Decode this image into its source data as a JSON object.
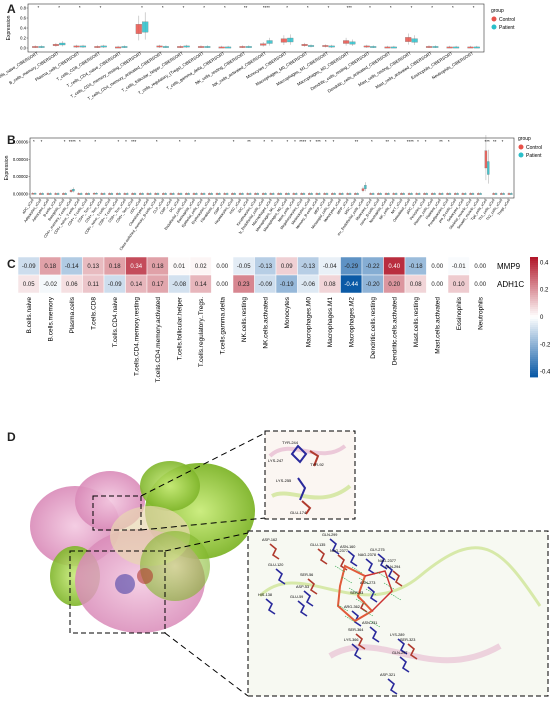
{
  "panels": {
    "a": {
      "letter": "A",
      "ylabel": "Expression",
      "legend_title": "group",
      "legend_items": [
        "Control",
        "Patient"
      ],
      "yticks": [
        "0.8",
        "0.6",
        "0.4",
        "0.2",
        "0.0"
      ],
      "categories": [
        "B_cells_naive_CIBERSORT",
        "B_cells_memory_CIBERSORT",
        "Plasma_cells_CIBERSORT",
        "T_cells_CD8_CIBERSORT",
        "T_cells_CD4_naive_CIBERSORT",
        "T_cells_CD4_memory_resting_CIBERSORT",
        "T_cells_CD4_memory_activated_CIBERSORT",
        "T_cells_follicular_helper_CIBERSORT",
        "T_cells_regulatory_(Tregs)_CIBERSORT",
        "T_cells_gamma_delta_CIBERSORT",
        "NK_cells_resting_CIBERSORT",
        "NK_cells_activated_CIBERSORT",
        "Monocytes_CIBERSORT",
        "Macrophages_M0_CIBERSORT",
        "Macrophages_M1_CIBERSORT",
        "Macrophages_M2_CIBERSORT",
        "Dendritic_cells_resting_CIBERSORT",
        "Dendritic_cells_activated_CIBERSORT",
        "Mast_cells_resting_CIBERSORT",
        "Mast_cells_activated_CIBERSORT",
        "Eosinophils_CIBERSORT",
        "Neutrophils_CIBERSORT"
      ],
      "significance": [
        "*",
        "*",
        "*",
        "*",
        "",
        "*",
        "*",
        "*",
        "*",
        "*",
        "**",
        "****",
        "*",
        "*",
        "*",
        "***",
        "*",
        "*",
        "*",
        "*",
        "*",
        "*"
      ],
      "control_median": [
        0.02,
        0.06,
        0.03,
        0.02,
        0.01,
        0.38,
        0.03,
        0.02,
        0.02,
        0.01,
        0.02,
        0.07,
        0.15,
        0.06,
        0.04,
        0.12,
        0.03,
        0.01,
        0.17,
        0.02,
        0.01,
        0.01
      ],
      "patient_median": [
        0.02,
        0.08,
        0.03,
        0.03,
        0.02,
        0.42,
        0.02,
        0.03,
        0.02,
        0.01,
        0.02,
        0.12,
        0.16,
        0.04,
        0.03,
        0.1,
        0.02,
        0.01,
        0.15,
        0.02,
        0.01,
        0.01
      ]
    },
    "b": {
      "letter": "B",
      "ylabel": "Expression",
      "legend_title": "group",
      "legend_items": [
        "Control",
        "Patient"
      ],
      "yticks": [
        "0.00006",
        "0.00004",
        "0.00002",
        "0.00000"
      ],
      "categories": [
        "aDC_xCell",
        "Adipocytes_xCell",
        "Astrocytes_xCell",
        "B-cells_xCell",
        "Basophils_xCell",
        "CD4+_memory_T-cells_xCell",
        "CD4+_naive_T-cells_xCell",
        "CD4+_T-cells_xCell",
        "CD4+_Tcm_xCell",
        "CD4+_Tem_xCell",
        "CD8+_naive_T-cells_xCell",
        "CD8+_T-cells_xCell",
        "CD8+_Tcm_xCell",
        "CD8+_Tem_xCell",
        "cDC_xCell",
        "Chondrocytes_xCell",
        "Class-switched_memory_B-cells_xCell",
        "CLP_xCell",
        "CMP_xCell",
        "DC_xCell",
        "Endothelial_cells_xCell",
        "Eosinophils_xCell",
        "Epithelial_cells_xCell",
        "Erythrocytes_xCell",
        "Fibroblasts_xCell",
        "GMP_xCell",
        "Hepatocytes_xCell",
        "HSC_xCell",
        "iDC_xCell",
        "Keratinocytes_xCell",
        "ly_Endothelial_cells_xCell",
        "Macrophages_xCell",
        "Macrophages_M1_xCell",
        "Macrophages_M2_xCell",
        "Mast_cells_xCell",
        "Megakaryocytes_xCell",
        "Melanocytes_xCell",
        "Memory_B-cells_xCell",
        "MEP_xCell",
        "Mesangial_cells_xCell",
        "Monocytes_xCell",
        "MPP_xCell",
        "MSC_xCell",
        "mv_Endothelial_cells_xCell",
        "Myocytes_xCell",
        "naive_B-cells_xCell",
        "Neutrophils_xCell",
        "NK_cells_xCell",
        "NKT_xCell",
        "Osteoblast_xCell",
        "pDC_xCell",
        "Pericytes_xCell",
        "Plasma_cells_xCell",
        "Platelets_xCell",
        "Preadipocytes_xCell",
        "pro_B-cells_xCell",
        "Sebocytes_xCell",
        "Skeletal_muscle_xCell",
        "Smooth_muscle_xCell",
        "Tgd_cells_xCell",
        "Th1_cells_xCell",
        "Th2_cells_xCell",
        "Tregs_xCell"
      ],
      "significance": [
        "*",
        "*",
        "",
        "",
        "*",
        "****",
        "*",
        "",
        "*",
        "",
        "",
        "*",
        "*",
        "***",
        "",
        "",
        "*",
        "",
        "",
        "*",
        "",
        "*",
        "",
        "",
        "",
        "",
        "*",
        "",
        "**",
        "",
        "*",
        "*",
        "",
        "*",
        "*",
        "****",
        "*",
        "***",
        "*",
        "*",
        "",
        "",
        "**",
        "",
        "*",
        "",
        "**",
        "*",
        "",
        "****",
        "*",
        "*",
        "",
        "**",
        "*",
        "",
        "",
        "",
        "",
        "***",
        "**",
        "*",
        ""
      ],
      "control_median": [
        2e-07,
        0,
        0,
        0,
        0,
        3.5e-06,
        0,
        0,
        2e-07,
        0,
        0,
        0,
        0,
        0,
        0,
        0,
        0,
        0,
        0,
        0,
        0,
        0,
        0,
        0,
        0,
        0,
        0,
        0,
        0,
        0,
        0,
        0,
        0,
        0,
        0,
        0,
        0,
        0,
        0,
        0,
        0,
        0,
        0,
        5e-06,
        0,
        0,
        0,
        0,
        0,
        0,
        0,
        0,
        0,
        0,
        0,
        0,
        0,
        0,
        0,
        4e-05,
        0,
        0,
        0
      ],
      "patient_median": [
        2e-07,
        0,
        0,
        0,
        0,
        4.5e-06,
        0,
        0,
        3e-07,
        0,
        0,
        0,
        0,
        0,
        0,
        0,
        0,
        0,
        0,
        0,
        0,
        0,
        0,
        0,
        0,
        0,
        0,
        0,
        0,
        0,
        0,
        0,
        0,
        0,
        0,
        0,
        0,
        0,
        0,
        0,
        0,
        0,
        0,
        8e-06,
        0,
        0,
        0,
        0,
        0,
        0,
        0,
        0,
        0,
        0,
        0,
        0,
        0,
        0,
        0,
        3e-05,
        0,
        0,
        0
      ]
    },
    "c": {
      "letter": "C",
      "rows": [
        "MMP9",
        "ADH1C"
      ],
      "columns": [
        "B.cells.naive",
        "B.cells.memory",
        "Plasma.cells",
        "T.cells.CD8",
        "T.cells.CD4.naive",
        "T.cells.CD4.memory.resting",
        "T.cells.CD4.memory.activated",
        "T.cells.follicular.helper",
        "T.cells.regulatory..Tregs.",
        "T.cells.gamma.delta",
        "NK.cells.resting",
        "NK.cells.activated",
        "Monocytes",
        "Macrophages.M0",
        "Macrophages.M1",
        "Macrophages.M2",
        "Dendritic.cells.resting",
        "Dendritic.cells.activated",
        "Mast.cells.resting",
        "Mast.cells.activated",
        "Eosinophils",
        "Neutrophils"
      ],
      "values_text": [
        [
          "-0.09",
          "0.18",
          "-0.14",
          "0.13",
          "0.18",
          "0.34",
          "0.18",
          "0.01",
          "0.02",
          "0.00",
          "-0.05",
          "-0.13",
          "0.09",
          "-0.13",
          "-0.04",
          "-0.29",
          "-0.22",
          "0.40",
          "-0.18",
          "0.00",
          "-0.01",
          "0.00"
        ],
        [
          "0.05",
          "-0.02",
          "0.06",
          "0.11",
          "-0.09",
          "0.14",
          "0.17",
          "-0.08",
          "0.14",
          "0.00",
          "0.23",
          "-0.09",
          "-0.19",
          "-0.06",
          "0.08",
          "-0.44",
          "-0.20",
          "0.20",
          "0.08",
          "0.00",
          "0.10",
          "0.00"
        ]
      ],
      "colorbar_ticks": [
        "0.4",
        "0.2",
        "0",
        "-0.2",
        "-0.4"
      ],
      "colors": {
        "pos": "#b2182b",
        "neg": "#0b5aa6",
        "mid": "#ffffff"
      }
    },
    "d": {
      "letter": "D",
      "inset_top_labels": [
        "TYR-244",
        "LYS-247",
        "TYR-92",
        "LYS-255",
        "GLU-174"
      ],
      "inset_bottom_labels": [
        "ASP-162",
        "GLU-120",
        "HIS-138",
        "GLU-135",
        "GLN-299",
        "ASN-160",
        "SER-56",
        "ASP-53",
        "GLU-59",
        "NAG-2377",
        "NAG-2378",
        "GLY-275",
        "GLN-294",
        "NAG-2377",
        "ASN-273",
        "SER-93",
        "ARG-362",
        "ASN-231",
        "SER-364",
        "LYS-366",
        "LYS-289",
        "SER-323",
        "GLN-297",
        "ASP-321"
      ],
      "colors": {
        "pink": "#d98ab8",
        "green": "#9acd32",
        "blue": "#2a2a9c",
        "red": "#b03a2e"
      }
    }
  }
}
